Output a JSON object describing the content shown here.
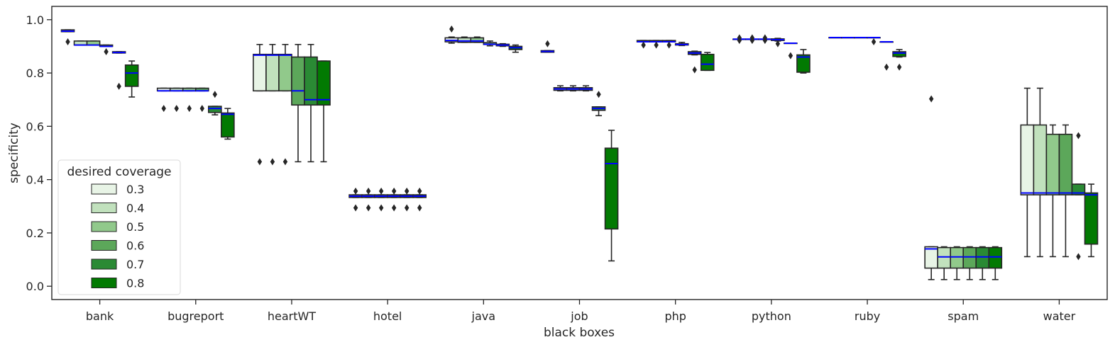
{
  "chart_data": {
    "type": "boxplot",
    "xlabel": "black boxes",
    "ylabel": "specificity",
    "ylim": [
      -0.05,
      1.05
    ],
    "yticks": [
      0.0,
      0.2,
      0.4,
      0.6,
      0.8,
      1.0
    ],
    "ytick_labels": [
      "0.0",
      "0.2",
      "0.4",
      "0.6",
      "0.8",
      "1.0"
    ],
    "grid": false,
    "median_color": "#0000ff",
    "legend": {
      "title": "desired coverage",
      "placement": "lower-left",
      "entries": [
        "0.3",
        "0.4",
        "0.5",
        "0.6",
        "0.7",
        "0.8"
      ]
    },
    "series_colors": [
      "#e8f4e6",
      "#c1e1bd",
      "#91c98b",
      "#5ca75a",
      "#2a8a34",
      "#027a02"
    ],
    "categories": [
      "bank",
      "bugreport",
      "heartWT",
      "hotel",
      "java",
      "job",
      "php",
      "python",
      "ruby",
      "spam",
      "water"
    ],
    "boxes": [
      [
        {
          "min": 0.955,
          "q1": 0.955,
          "median": 0.957,
          "q3": 0.962,
          "max": 0.962,
          "outliers": [
            0.917
          ]
        },
        {
          "min": 0.905,
          "q1": 0.905,
          "median": 0.905,
          "q3": 0.92,
          "max": 0.92,
          "outliers": []
        },
        {
          "min": 0.905,
          "q1": 0.905,
          "median": 0.905,
          "q3": 0.92,
          "max": 0.92,
          "outliers": []
        },
        {
          "min": 0.9,
          "q1": 0.9,
          "median": 0.9,
          "q3": 0.905,
          "max": 0.905,
          "outliers": [
            0.88
          ]
        },
        {
          "min": 0.875,
          "q1": 0.875,
          "median": 0.877,
          "q3": 0.88,
          "max": 0.88,
          "outliers": [
            0.75
          ]
        },
        {
          "min": 0.71,
          "q1": 0.75,
          "median": 0.8,
          "q3": 0.83,
          "max": 0.845,
          "outliers": []
        }
      ],
      [
        {
          "min": 0.733,
          "q1": 0.733,
          "median": 0.733,
          "q3": 0.743,
          "max": 0.743,
          "outliers": [
            0.667
          ]
        },
        {
          "min": 0.733,
          "q1": 0.733,
          "median": 0.733,
          "q3": 0.743,
          "max": 0.743,
          "outliers": [
            0.667
          ]
        },
        {
          "min": 0.733,
          "q1": 0.733,
          "median": 0.733,
          "q3": 0.743,
          "max": 0.743,
          "outliers": [
            0.667
          ]
        },
        {
          "min": 0.733,
          "q1": 0.733,
          "median": 0.733,
          "q3": 0.743,
          "max": 0.743,
          "outliers": [
            0.667
          ]
        },
        {
          "min": 0.643,
          "q1": 0.652,
          "median": 0.667,
          "q3": 0.675,
          "max": 0.675,
          "outliers": [
            0.72
          ]
        },
        {
          "min": 0.552,
          "q1": 0.56,
          "median": 0.645,
          "q3": 0.65,
          "max": 0.667,
          "outliers": []
        }
      ],
      [
        {
          "min": 0.733,
          "q1": 0.733,
          "median": 0.867,
          "q3": 0.87,
          "max": 0.907,
          "outliers": [
            0.467
          ]
        },
        {
          "min": 0.733,
          "q1": 0.733,
          "median": 0.867,
          "q3": 0.87,
          "max": 0.907,
          "outliers": [
            0.467
          ]
        },
        {
          "min": 0.733,
          "q1": 0.733,
          "median": 0.867,
          "q3": 0.87,
          "max": 0.907,
          "outliers": [
            0.467
          ]
        },
        {
          "min": 0.467,
          "q1": 0.68,
          "median": 0.733,
          "q3": 0.86,
          "max": 0.907,
          "outliers": []
        },
        {
          "min": 0.467,
          "q1": 0.68,
          "median": 0.7,
          "q3": 0.86,
          "max": 0.907,
          "outliers": []
        },
        {
          "min": 0.467,
          "q1": 0.68,
          "median": 0.7,
          "q3": 0.845,
          "max": 0.845,
          "outliers": []
        }
      ],
      [
        {
          "min": 0.333,
          "q1": 0.333,
          "median": 0.338,
          "q3": 0.343,
          "max": 0.343,
          "outliers": [
            0.357,
            0.294
          ]
        },
        {
          "min": 0.333,
          "q1": 0.333,
          "median": 0.338,
          "q3": 0.343,
          "max": 0.343,
          "outliers": [
            0.357,
            0.294
          ]
        },
        {
          "min": 0.333,
          "q1": 0.333,
          "median": 0.338,
          "q3": 0.343,
          "max": 0.343,
          "outliers": [
            0.357,
            0.294
          ]
        },
        {
          "min": 0.333,
          "q1": 0.333,
          "median": 0.338,
          "q3": 0.343,
          "max": 0.343,
          "outliers": [
            0.357,
            0.294
          ]
        },
        {
          "min": 0.333,
          "q1": 0.333,
          "median": 0.338,
          "q3": 0.343,
          "max": 0.343,
          "outliers": [
            0.357,
            0.294
          ]
        },
        {
          "min": 0.333,
          "q1": 0.333,
          "median": 0.338,
          "q3": 0.343,
          "max": 0.343,
          "outliers": [
            0.357,
            0.294
          ]
        }
      ],
      [
        {
          "min": 0.912,
          "q1": 0.917,
          "median": 0.922,
          "q3": 0.932,
          "max": 0.935,
          "outliers": [
            0.965
          ]
        },
        {
          "min": 0.915,
          "q1": 0.915,
          "median": 0.92,
          "q3": 0.932,
          "max": 0.935,
          "outliers": []
        },
        {
          "min": 0.915,
          "q1": 0.915,
          "median": 0.92,
          "q3": 0.932,
          "max": 0.935,
          "outliers": []
        },
        {
          "min": 0.902,
          "q1": 0.907,
          "median": 0.908,
          "q3": 0.914,
          "max": 0.92,
          "outliers": []
        },
        {
          "min": 0.9,
          "q1": 0.902,
          "median": 0.905,
          "q3": 0.908,
          "max": 0.91,
          "outliers": []
        },
        {
          "min": 0.878,
          "q1": 0.888,
          "median": 0.895,
          "q3": 0.9,
          "max": 0.905,
          "outliers": []
        }
      ],
      [
        {
          "min": 0.878,
          "q1": 0.878,
          "median": 0.881,
          "q3": 0.884,
          "max": 0.884,
          "outliers": [
            0.91
          ]
        },
        {
          "min": 0.733,
          "q1": 0.735,
          "median": 0.74,
          "q3": 0.745,
          "max": 0.752,
          "outliers": []
        },
        {
          "min": 0.733,
          "q1": 0.735,
          "median": 0.74,
          "q3": 0.745,
          "max": 0.752,
          "outliers": []
        },
        {
          "min": 0.733,
          "q1": 0.735,
          "median": 0.74,
          "q3": 0.745,
          "max": 0.752,
          "outliers": []
        },
        {
          "min": 0.64,
          "q1": 0.66,
          "median": 0.667,
          "q3": 0.673,
          "max": 0.673,
          "outliers": [
            0.72
          ]
        },
        {
          "min": 0.095,
          "q1": 0.215,
          "median": 0.46,
          "q3": 0.518,
          "max": 0.585,
          "outliers": []
        }
      ],
      [
        {
          "min": 0.917,
          "q1": 0.917,
          "median": 0.917,
          "q3": 0.922,
          "max": 0.922,
          "outliers": [
            0.905
          ]
        },
        {
          "min": 0.917,
          "q1": 0.917,
          "median": 0.917,
          "q3": 0.922,
          "max": 0.922,
          "outliers": [
            0.905
          ]
        },
        {
          "min": 0.917,
          "q1": 0.917,
          "median": 0.917,
          "q3": 0.922,
          "max": 0.922,
          "outliers": [
            0.905
          ]
        },
        {
          "min": 0.903,
          "q1": 0.905,
          "median": 0.907,
          "q3": 0.91,
          "max": 0.915,
          "outliers": []
        },
        {
          "min": 0.868,
          "q1": 0.87,
          "median": 0.875,
          "q3": 0.88,
          "max": 0.882,
          "outliers": [
            0.812
          ]
        },
        {
          "min": 0.81,
          "q1": 0.81,
          "median": 0.833,
          "q3": 0.87,
          "max": 0.877,
          "outliers": []
        }
      ],
      [
        {
          "min": 0.927,
          "q1": 0.927,
          "median": 0.927,
          "q3": 0.927,
          "max": 0.927,
          "outliers": [
            0.932,
            0.922
          ]
        },
        {
          "min": 0.927,
          "q1": 0.927,
          "median": 0.927,
          "q3": 0.927,
          "max": 0.927,
          "outliers": [
            0.932,
            0.922
          ]
        },
        {
          "min": 0.927,
          "q1": 0.927,
          "median": 0.927,
          "q3": 0.927,
          "max": 0.927,
          "outliers": [
            0.932,
            0.922
          ]
        },
        {
          "min": 0.92,
          "q1": 0.922,
          "median": 0.925,
          "q3": 0.928,
          "max": 0.93,
          "outliers": [
            0.91
          ]
        },
        {
          "min": 0.912,
          "q1": 0.912,
          "median": 0.912,
          "q3": 0.912,
          "max": 0.912,
          "outliers": [
            0.865
          ]
        },
        {
          "min": 0.8,
          "q1": 0.803,
          "median": 0.86,
          "q3": 0.868,
          "max": 0.888,
          "outliers": []
        }
      ],
      [
        {
          "min": 0.933,
          "q1": 0.933,
          "median": 0.933,
          "q3": 0.933,
          "max": 0.933,
          "outliers": []
        },
        {
          "min": 0.933,
          "q1": 0.933,
          "median": 0.933,
          "q3": 0.933,
          "max": 0.933,
          "outliers": []
        },
        {
          "min": 0.933,
          "q1": 0.933,
          "median": 0.933,
          "q3": 0.933,
          "max": 0.933,
          "outliers": []
        },
        {
          "min": 0.933,
          "q1": 0.933,
          "median": 0.933,
          "q3": 0.933,
          "max": 0.933,
          "outliers": [
            0.917
          ]
        },
        {
          "min": 0.917,
          "q1": 0.917,
          "median": 0.917,
          "q3": 0.917,
          "max": 0.917,
          "outliers": [
            0.822
          ]
        },
        {
          "min": 0.86,
          "q1": 0.862,
          "median": 0.875,
          "q3": 0.88,
          "max": 0.888,
          "outliers": [
            0.822
          ]
        }
      ],
      [
        {
          "min": 0.025,
          "q1": 0.068,
          "median": 0.14,
          "q3": 0.148,
          "max": 0.148,
          "outliers": [
            0.703
          ]
        },
        {
          "min": 0.025,
          "q1": 0.068,
          "median": 0.11,
          "q3": 0.145,
          "max": 0.148,
          "outliers": []
        },
        {
          "min": 0.025,
          "q1": 0.068,
          "median": 0.11,
          "q3": 0.145,
          "max": 0.148,
          "outliers": []
        },
        {
          "min": 0.025,
          "q1": 0.068,
          "median": 0.11,
          "q3": 0.145,
          "max": 0.148,
          "outliers": []
        },
        {
          "min": 0.025,
          "q1": 0.068,
          "median": 0.11,
          "q3": 0.145,
          "max": 0.148,
          "outliers": []
        },
        {
          "min": 0.025,
          "q1": 0.068,
          "median": 0.11,
          "q3": 0.145,
          "max": 0.148,
          "outliers": []
        }
      ],
      [
        {
          "min": 0.111,
          "q1": 0.343,
          "median": 0.35,
          "q3": 0.605,
          "max": 0.743,
          "outliers": []
        },
        {
          "min": 0.111,
          "q1": 0.343,
          "median": 0.35,
          "q3": 0.605,
          "max": 0.743,
          "outliers": []
        },
        {
          "min": 0.111,
          "q1": 0.343,
          "median": 0.35,
          "q3": 0.57,
          "max": 0.605,
          "outliers": []
        },
        {
          "min": 0.111,
          "q1": 0.343,
          "median": 0.35,
          "q3": 0.57,
          "max": 0.605,
          "outliers": []
        },
        {
          "min": 0.343,
          "q1": 0.343,
          "median": 0.35,
          "q3": 0.383,
          "max": 0.383,
          "outliers": [
            0.565,
            0.111
          ]
        },
        {
          "min": 0.111,
          "q1": 0.158,
          "median": 0.343,
          "q3": 0.35,
          "max": 0.383,
          "outliers": []
        }
      ]
    ]
  }
}
